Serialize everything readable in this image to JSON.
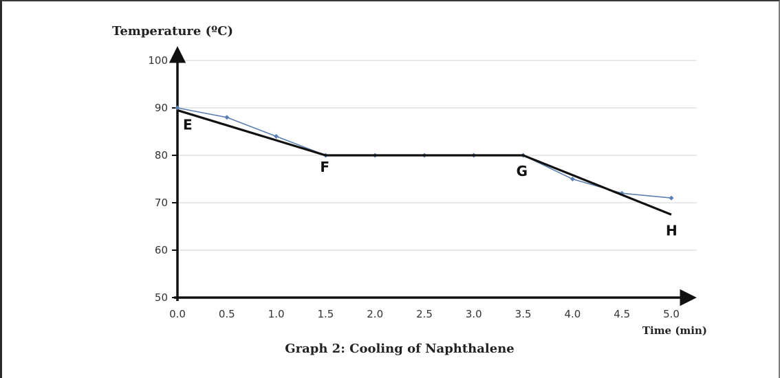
{
  "chart_data": {
    "type": "line",
    "title": "Graph 2: Cooling of Naphthalene",
    "xlabel": "Time (min)",
    "ylabel": "Temperature (ºC)",
    "xlim": [
      0,
      5
    ],
    "ylim": [
      50,
      100
    ],
    "x_ticks": [
      "0.0",
      "0.5",
      "1.0",
      "1.5",
      "2.0",
      "2.5",
      "3.0",
      "3.5",
      "4.0",
      "4.5",
      "5.0"
    ],
    "y_ticks": [
      "50",
      "60",
      "70",
      "80",
      "90",
      "100"
    ],
    "grid": true,
    "colors": {
      "measured": "#5b7fb0",
      "fitted": "#111111",
      "grid": "#d0d0d0",
      "axis": "#111111"
    },
    "series": [
      {
        "values": [
          [
            0.0,
            90
          ],
          [
            0.5,
            88
          ],
          [
            1.0,
            84
          ],
          [
            1.5,
            80
          ],
          [
            2.0,
            80
          ],
          [
            2.5,
            80
          ],
          [
            3.0,
            80
          ],
          [
            3.5,
            80
          ],
          [
            4.0,
            75
          ],
          [
            4.5,
            72
          ],
          [
            5.0,
            71
          ]
        ]
      },
      {
        "values": [
          [
            0.0,
            89.5
          ],
          [
            1.5,
            80
          ],
          [
            3.5,
            80
          ],
          [
            5.0,
            67.5
          ]
        ]
      }
    ],
    "annotations": [
      {
        "text": "E",
        "x": 0.0,
        "y": 89.5
      },
      {
        "text": "F",
        "x": 1.5,
        "y": 80
      },
      {
        "text": "G",
        "x": 3.5,
        "y": 80
      },
      {
        "text": "H",
        "x": 5.0,
        "y": 67.5
      }
    ]
  }
}
